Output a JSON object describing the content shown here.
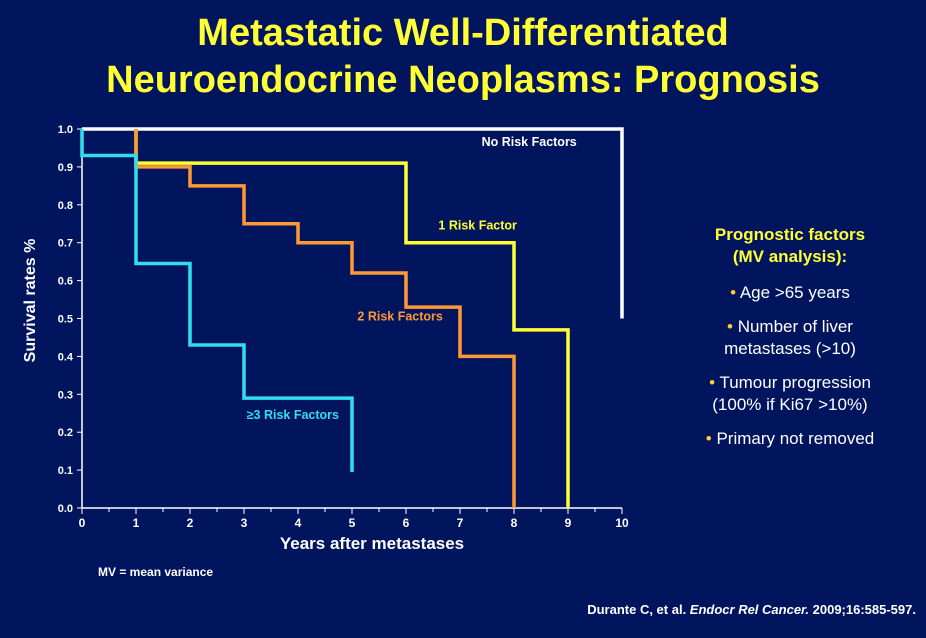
{
  "slide": {
    "title_line1": "Metastatic Well-Differentiated",
    "title_line2": "Neuroendocrine Neoplasms: Prognosis",
    "footnote": "MV = mean variance",
    "citation": {
      "authors": "Durante C, et al. ",
      "journal": "Endocr Rel Cancer.",
      "details": " 2009;16:585-597."
    },
    "side_panel": {
      "heading_line1": "Prognostic factors",
      "heading_line2": "(MV analysis):",
      "bullet_symbol": "•",
      "factors": [
        {
          "line1": "Age >65 years",
          "line2": ""
        },
        {
          "line1": "Number of liver",
          "line2": "metastases (>10)"
        },
        {
          "line1": "Tumour progression",
          "line2": "(100% if Ki67 >10%)"
        },
        {
          "line1": "Primary not removed",
          "line2": ""
        }
      ]
    }
  },
  "colors": {
    "background": "#00155e",
    "title": "#ffff33",
    "axis": "#ffffff"
  },
  "chart_data": {
    "type": "line",
    "step": true,
    "xlabel": "Years after metastases",
    "ylabel": "Survival rates %",
    "xlim": [
      0,
      10
    ],
    "ylim": [
      0,
      1
    ],
    "x_ticks": [
      "0",
      "1",
      "2",
      "3",
      "4",
      "5",
      "6",
      "7",
      "8",
      "9",
      "10"
    ],
    "y_ticks": [
      "0.0",
      "0.1",
      "0.2",
      "0.3",
      "0.4",
      "0.5",
      "0.6",
      "0.7",
      "0.8",
      "0.9",
      "1.0"
    ],
    "grid": false,
    "series": [
      {
        "name": "No Risk Factors",
        "color": "#ffffff",
        "points": [
          [
            0,
            1.0
          ],
          [
            10,
            1.0
          ],
          [
            10,
            0.5
          ]
        ]
      },
      {
        "name": "1 Risk Factor",
        "color": "#ffff33",
        "points": [
          [
            1,
            1.0
          ],
          [
            1,
            0.91
          ],
          [
            6,
            0.91
          ],
          [
            6,
            0.7
          ],
          [
            8,
            0.7
          ],
          [
            8,
            0.47
          ],
          [
            9,
            0.47
          ],
          [
            9,
            0.0
          ]
        ]
      },
      {
        "name": "2 Risk Factors",
        "color": "#ff9933",
        "points": [
          [
            1,
            1.0
          ],
          [
            1,
            0.9
          ],
          [
            2,
            0.9
          ],
          [
            2,
            0.85
          ],
          [
            3,
            0.85
          ],
          [
            3,
            0.75
          ],
          [
            4,
            0.75
          ],
          [
            4,
            0.7
          ],
          [
            5,
            0.7
          ],
          [
            5,
            0.62
          ],
          [
            6,
            0.62
          ],
          [
            6,
            0.53
          ],
          [
            7,
            0.53
          ],
          [
            7,
            0.4
          ],
          [
            8,
            0.4
          ],
          [
            8,
            0.0
          ]
        ]
      },
      {
        "name": "≥3 Risk Factors",
        "color": "#33ddee",
        "points": [
          [
            0,
            1.0
          ],
          [
            0,
            0.93
          ],
          [
            1,
            0.93
          ],
          [
            1,
            0.645
          ],
          [
            2,
            0.645
          ],
          [
            2,
            0.43
          ],
          [
            3,
            0.43
          ],
          [
            3,
            0.29
          ],
          [
            5,
            0.29
          ],
          [
            5,
            0.095
          ]
        ]
      }
    ],
    "annotations": [
      {
        "series": 0,
        "text": "No Risk Factors",
        "x": 7.4,
        "y": 0.955
      },
      {
        "series": 1,
        "text": "1 Risk Factor",
        "x": 6.6,
        "y": 0.735
      },
      {
        "series": 2,
        "text": "2 Risk Factors",
        "x": 5.1,
        "y": 0.495
      },
      {
        "series": 3,
        "text": "≥3 Risk Factors",
        "x": 3.05,
        "y": 0.235
      }
    ]
  }
}
